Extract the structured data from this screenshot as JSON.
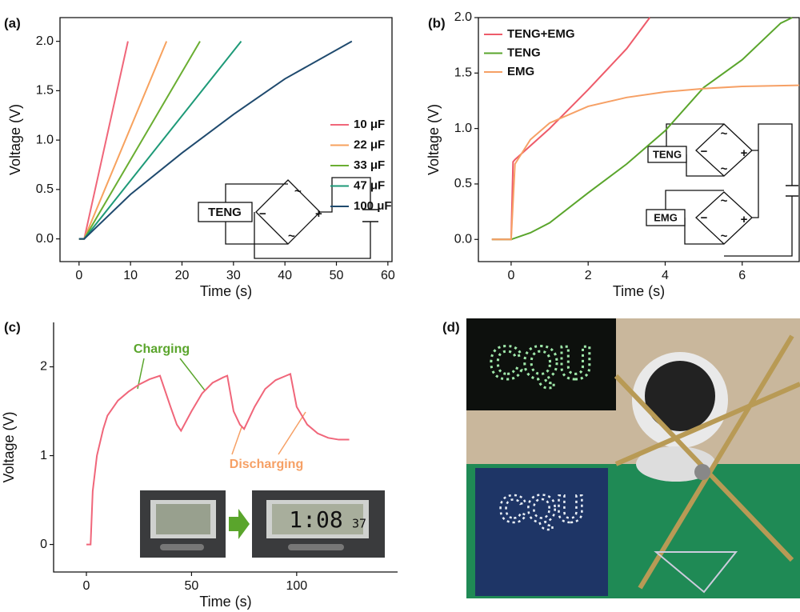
{
  "chart_data": [
    {
      "type": "line",
      "panel_label": "(a)",
      "xlabel": "Time (s)",
      "ylabel": "Voltage (V)",
      "spines": "box",
      "xlim": [
        -3.7,
        60.8
      ],
      "xticks": [
        0,
        10,
        20,
        30,
        40,
        50,
        60
      ],
      "ylim": [
        -0.23,
        2.24
      ],
      "yticks": [
        {
          "value": 0,
          "label": "0.0"
        },
        {
          "value": 0.5,
          "label": "0.5"
        },
        {
          "value": 1,
          "label": "1.0"
        },
        {
          "value": 1.5,
          "label": "1.5"
        },
        {
          "value": 2,
          "label": "2.0"
        }
      ],
      "legend": "right",
      "series": [
        {
          "name": "10 μF",
          "color": "#f0667a",
          "x": [
            0,
            1,
            9.5
          ],
          "values": [
            0,
            0,
            2.0
          ]
        },
        {
          "name": "22 μF",
          "color": "#f7a25e",
          "x": [
            0,
            1,
            17
          ],
          "values": [
            0,
            0,
            2.0
          ]
        },
        {
          "name": "33 μF",
          "color": "#6aae32",
          "x": [
            0,
            1,
            23.5
          ],
          "values": [
            0,
            0,
            2.0
          ]
        },
        {
          "name": "47 μF",
          "color": "#1e9a78",
          "x": [
            0,
            1,
            31.5
          ],
          "values": [
            0,
            0,
            2.0
          ]
        },
        {
          "name": "100 μF",
          "color": "#1f4a6e",
          "x": [
            0,
            1,
            10,
            20,
            30,
            40,
            53
          ],
          "values": [
            0,
            0,
            0.45,
            0.87,
            1.26,
            1.62,
            2.0
          ]
        }
      ],
      "inset": {
        "sources": [
          "TENG"
        ],
        "signs": [
          "~",
          "+",
          "−",
          "~"
        ]
      }
    },
    {
      "type": "line",
      "panel_label": "(b)",
      "xlabel": "Time (s)",
      "ylabel": "Voltage (V)",
      "spines": "box",
      "xlim": [
        -0.85,
        7.48
      ],
      "xticks": [
        0,
        2,
        4,
        6
      ],
      "ylim": [
        -0.2,
        2.0
      ],
      "yticks": [
        {
          "value": 0,
          "label": "0.0"
        },
        {
          "value": 0.5,
          "label": "0.5"
        },
        {
          "value": 1,
          "label": "1.0"
        },
        {
          "value": 1.5,
          "label": "1.5"
        },
        {
          "value": 2,
          "label": "2.0"
        }
      ],
      "legend": "upper left",
      "series": [
        {
          "name": "TENG+EMG",
          "color": "#ee5b6a",
          "x": [
            -0.5,
            0,
            0.05,
            0.1,
            1,
            2,
            3,
            3.6
          ],
          "values": [
            0,
            0,
            0.7,
            0.72,
            1.0,
            1.35,
            1.72,
            2.0
          ]
        },
        {
          "name": "TENG",
          "color": "#5aa52c",
          "x": [
            -0.5,
            0,
            0.5,
            1,
            2,
            3,
            4,
            5,
            6,
            7,
            7.3
          ],
          "values": [
            0,
            0,
            0.06,
            0.15,
            0.42,
            0.68,
            0.98,
            1.37,
            1.62,
            1.95,
            2.0
          ]
        },
        {
          "name": "EMG",
          "color": "#f6a065",
          "x": [
            -0.5,
            0,
            0.1,
            0.5,
            1,
            2,
            3,
            4,
            5,
            6,
            7.48
          ],
          "values": [
            0,
            0,
            0.68,
            0.9,
            1.05,
            1.2,
            1.28,
            1.33,
            1.36,
            1.38,
            1.39
          ]
        }
      ],
      "inset": {
        "sources": [
          "TENG",
          "EMG"
        ],
        "signs": [
          "~",
          "+",
          "−",
          "~"
        ]
      }
    },
    {
      "type": "line",
      "panel_label": "(c)",
      "xlabel": "Time (s)",
      "ylabel": "Voltage (V)",
      "spines": "left-bottom",
      "xlim": [
        -15.6,
        148
      ],
      "xticks": [
        0,
        50,
        100
      ],
      "ylim": [
        -0.31,
        2.5
      ],
      "yticks": [
        0,
        1,
        2
      ],
      "series": [
        {
          "name": null,
          "color": "#f0667a",
          "x": [
            0,
            2,
            3,
            5,
            8,
            10,
            15,
            20,
            25,
            30,
            35,
            40,
            43,
            45,
            50,
            55,
            60,
            65,
            67,
            70,
            73,
            75,
            80,
            85,
            90,
            95,
            97,
            100,
            105,
            110,
            115,
            120,
            125
          ],
          "values": [
            0,
            0,
            0.6,
            1.0,
            1.3,
            1.45,
            1.62,
            1.72,
            1.8,
            1.86,
            1.9,
            1.55,
            1.35,
            1.28,
            1.5,
            1.7,
            1.82,
            1.88,
            1.9,
            1.5,
            1.35,
            1.3,
            1.55,
            1.75,
            1.85,
            1.9,
            1.92,
            1.55,
            1.35,
            1.25,
            1.2,
            1.18,
            1.18
          ]
        }
      ],
      "annotations": [
        {
          "text": "Charging",
          "color": "#5aa52c"
        },
        {
          "text": "Discharging",
          "color": "#f6a065"
        }
      ],
      "display": {
        "time": "1:08",
        "seconds": "37"
      }
    }
  ],
  "photo": {
    "panel_label": "(d)",
    "led_text": "CQU"
  }
}
